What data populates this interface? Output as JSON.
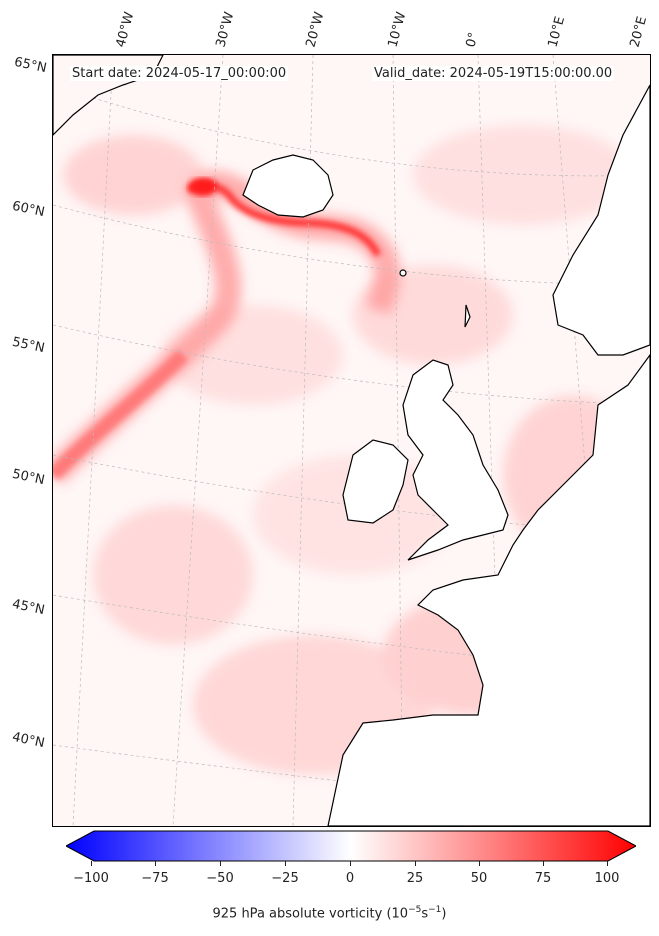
{
  "header": {
    "start_date": "Start date: 2024-05-17_00:00:00",
    "valid_date": "Valid_date: 2024-05-19T15:00:00.00"
  },
  "lon_labels": [
    "40°W",
    "30°W",
    "20°W",
    "10°W",
    "0°",
    "10°E",
    "20°E"
  ],
  "lat_labels": [
    "65°N",
    "60°N",
    "55°N",
    "50°N",
    "45°N",
    "40°N"
  ],
  "colorbar": {
    "ticks": [
      "−100",
      "−75",
      "−50",
      "−25",
      "0",
      "25",
      "50",
      "75",
      "100"
    ],
    "label_main": "925 hPa absolute vorticity (10",
    "label_exp1": "−5",
    "label_mid": "s",
    "label_exp2": "−1",
    "label_end": ")",
    "range": [
      -100,
      100
    ],
    "colors": {
      "min": "#0000ff",
      "mid": "#ffffff",
      "max": "#ff0000"
    }
  },
  "map": {
    "background_color": "#fff6f6",
    "field_color": "#ff0000",
    "land_fill": "#ffffff",
    "coastline_color": "#000000",
    "gridline_color": "#bbbbbb"
  }
}
